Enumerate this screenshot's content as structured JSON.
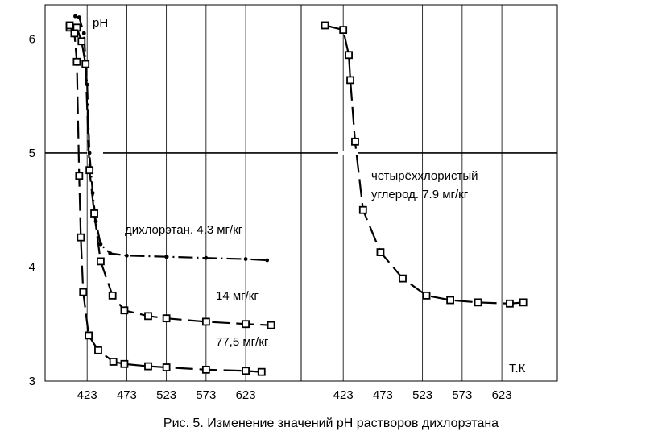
{
  "caption": "Рис. 5. Изменение значений рН растворов дихлорэтана",
  "chart_data": [
    {
      "type": "line",
      "ylabel": "рН",
      "xlabel": "",
      "x_ticks": [
        "423",
        "473",
        "523",
        "573",
        "623"
      ],
      "y_ticks": [
        "3",
        "4",
        "5",
        "6"
      ],
      "ylim": [
        3,
        6.3
      ],
      "xlim": [
        370,
        693
      ],
      "grid": true,
      "series": [
        {
          "name": "дихлорэтан. 4.3 мг/кг",
          "marker": "dot",
          "x": [
            408,
            413,
            419,
            423,
            426,
            430,
            434,
            440,
            452,
            473,
            523,
            573,
            623,
            650
          ],
          "y": [
            6.2,
            6.19,
            6.05,
            5.6,
            5.0,
            4.65,
            4.4,
            4.2,
            4.12,
            4.1,
            4.09,
            4.08,
            4.07,
            4.06
          ]
        },
        {
          "name": "14 мг/кг",
          "marker": "square",
          "x": [
            401,
            410,
            416,
            421,
            426,
            432,
            440,
            455,
            470,
            500,
            523,
            573,
            623,
            655
          ],
          "y": [
            6.1,
            6.1,
            5.98,
            5.78,
            4.85,
            4.47,
            4.05,
            3.75,
            3.62,
            3.57,
            3.55,
            3.52,
            3.5,
            3.49
          ]
        },
        {
          "name": "77,5 мг/кг",
          "marker": "square",
          "x": [
            401,
            407,
            410,
            413,
            415,
            418,
            425,
            437,
            456,
            470,
            500,
            523,
            573,
            623,
            643
          ],
          "y": [
            6.12,
            6.05,
            5.8,
            4.8,
            4.26,
            3.78,
            3.4,
            3.27,
            3.17,
            3.15,
            3.13,
            3.12,
            3.1,
            3.09,
            3.08
          ]
        }
      ],
      "annotations": [
        "дихлорэтан. 4.3 мг/кг",
        "14 мг/кг",
        "77,5 мг/кг"
      ]
    },
    {
      "type": "line",
      "xlabel": "Т.К",
      "ylabel": "",
      "x_ticks": [
        "423",
        "473",
        "523",
        "573",
        "623"
      ],
      "xlim": [
        370,
        693
      ],
      "ylim": [
        3,
        6.3
      ],
      "grid": true,
      "series": [
        {
          "name": "четырёххлористый углерод. 7.9 мг/кг",
          "marker": "square",
          "x": [
            400,
            423,
            430,
            432,
            438,
            448,
            470,
            498,
            528,
            558,
            593,
            633,
            650
          ],
          "y": [
            6.12,
            6.08,
            5.86,
            5.64,
            5.1,
            4.5,
            4.13,
            3.9,
            3.75,
            3.71,
            3.69,
            3.68,
            3.69
          ]
        }
      ],
      "annotations": [
        "четырёххлористый",
        "углерод. 7.9 мг/кг"
      ]
    }
  ]
}
